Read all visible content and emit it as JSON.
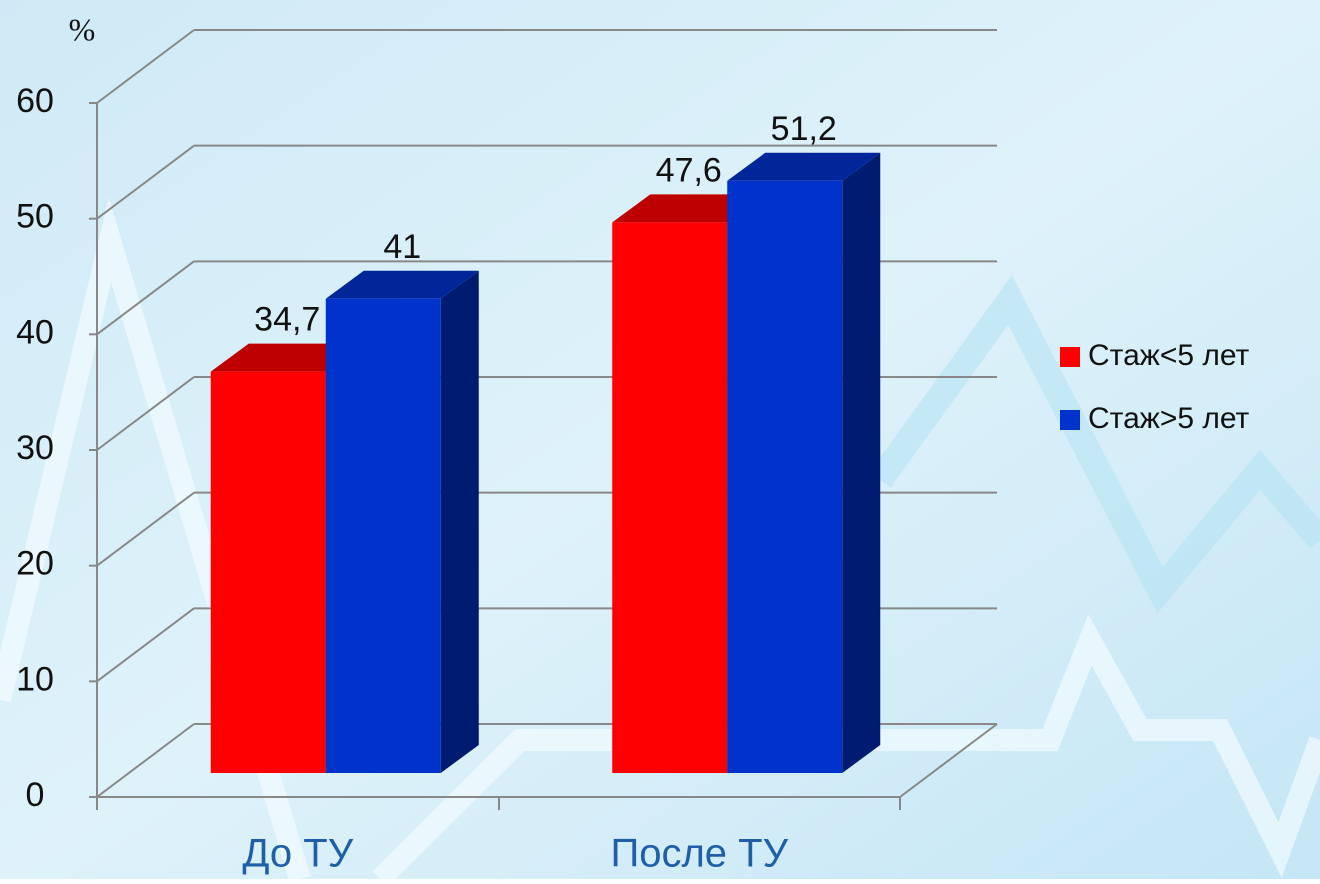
{
  "chart_data": {
    "type": "bar3d",
    "y_label": "%",
    "categories": [
      "До ТУ",
      "После ТУ"
    ],
    "series": [
      {
        "name": "Стаж<5 лет",
        "color": "#ff0000",
        "values": [
          34.7,
          47.6
        ],
        "value_labels": [
          "34,7",
          "47,6"
        ]
      },
      {
        "name": "Стаж>5 лет",
        "color": "#0033cc",
        "values": [
          41,
          51.2
        ],
        "value_labels": [
          "41",
          "51,2"
        ]
      }
    ],
    "ylim": [
      0,
      60
    ],
    "yticks": [
      0,
      10,
      20,
      30,
      40,
      50,
      60
    ],
    "grid": true,
    "legend": "right"
  }
}
